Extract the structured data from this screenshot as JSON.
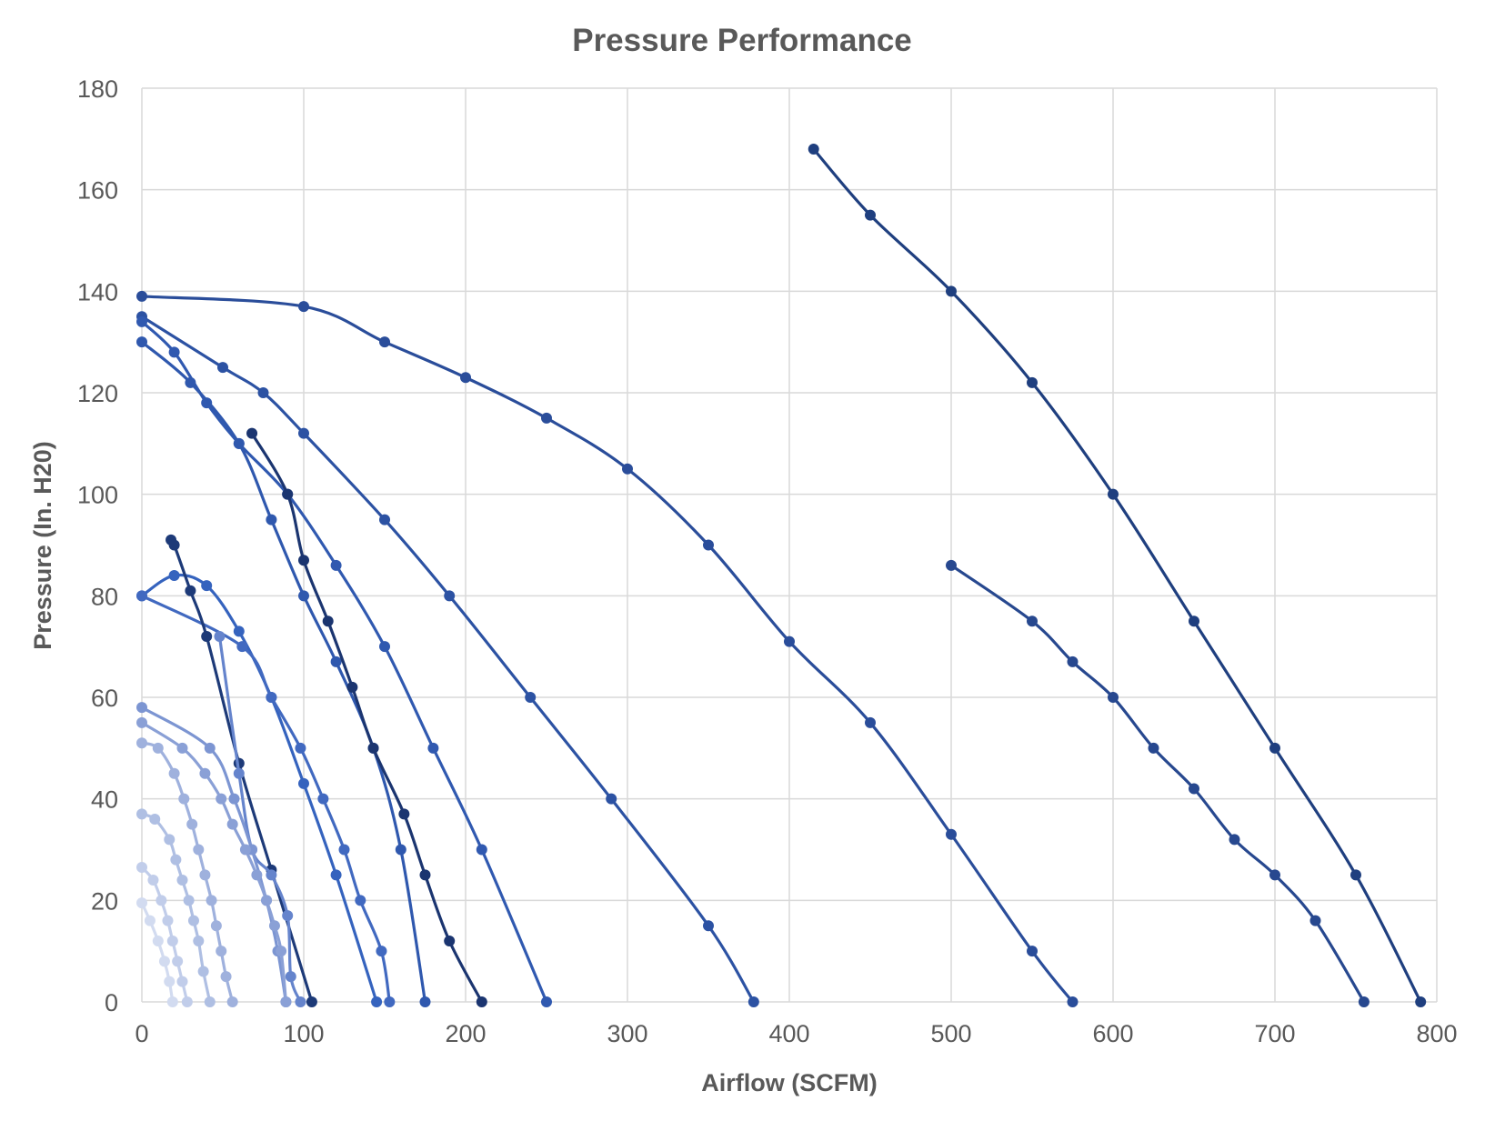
{
  "chart_data": {
    "type": "scatter",
    "title": "Pressure Performance",
    "xlabel": "Airflow (SCFM)",
    "ylabel": "Pressure (In. H20)",
    "xlim": [
      0,
      800
    ],
    "ylim": [
      0,
      180
    ],
    "xticks": [
      0,
      100,
      200,
      300,
      400,
      500,
      600,
      700,
      800
    ],
    "yticks": [
      0,
      20,
      40,
      60,
      80,
      100,
      120,
      140,
      160,
      180
    ],
    "grid": true,
    "legend": "none",
    "smoothed_lines_with_markers": true,
    "series": [
      {
        "color": "#1f3f7f",
        "points": [
          [
            415,
            168
          ],
          [
            450,
            155
          ],
          [
            500,
            140
          ],
          [
            550,
            122
          ],
          [
            600,
            100
          ],
          [
            650,
            75
          ],
          [
            700,
            50
          ],
          [
            750,
            25
          ],
          [
            790,
            0
          ]
        ]
      },
      {
        "color": "#27488f",
        "points": [
          [
            500,
            86
          ],
          [
            550,
            75
          ],
          [
            575,
            67
          ],
          [
            600,
            60
          ],
          [
            625,
            50
          ],
          [
            650,
            42
          ],
          [
            675,
            32
          ],
          [
            700,
            25
          ],
          [
            725,
            16
          ],
          [
            755,
            0
          ]
        ]
      },
      {
        "color": "#2a4d9a",
        "points": [
          [
            0,
            139
          ],
          [
            100,
            137
          ],
          [
            150,
            130
          ],
          [
            200,
            123
          ],
          [
            250,
            115
          ],
          [
            300,
            105
          ],
          [
            350,
            90
          ],
          [
            400,
            71
          ],
          [
            450,
            55
          ],
          [
            500,
            33
          ],
          [
            550,
            10
          ],
          [
            575,
            0
          ]
        ]
      },
      {
        "color": "#2c52a3",
        "points": [
          [
            0,
            135
          ],
          [
            50,
            125
          ],
          [
            75,
            120
          ],
          [
            100,
            112
          ],
          [
            150,
            95
          ],
          [
            190,
            80
          ],
          [
            240,
            60
          ],
          [
            290,
            40
          ],
          [
            350,
            15
          ],
          [
            378,
            0
          ]
        ]
      },
      {
        "color": "#3059b0",
        "points": [
          [
            0,
            134
          ],
          [
            20,
            128
          ],
          [
            40,
            118
          ],
          [
            60,
            110
          ],
          [
            90,
            100
          ],
          [
            120,
            86
          ],
          [
            150,
            70
          ],
          [
            180,
            50
          ],
          [
            210,
            30
          ],
          [
            250,
            0
          ]
        ]
      },
      {
        "color": "#2f58ae",
        "points": [
          [
            0,
            130
          ],
          [
            30,
            122
          ],
          [
            60,
            110
          ],
          [
            80,
            95
          ],
          [
            100,
            80
          ],
          [
            120,
            67
          ],
          [
            143,
            50
          ],
          [
            160,
            30
          ],
          [
            175,
            0
          ]
        ]
      },
      {
        "color": "#1b3570",
        "points": [
          [
            68,
            112
          ],
          [
            90,
            100
          ],
          [
            100,
            87
          ],
          [
            115,
            75
          ],
          [
            130,
            62
          ],
          [
            143,
            50
          ],
          [
            162,
            37
          ],
          [
            175,
            25
          ],
          [
            190,
            12
          ],
          [
            210,
            0
          ]
        ]
      },
      {
        "color": "#3563be",
        "points": [
          [
            0,
            80
          ],
          [
            20,
            84
          ],
          [
            40,
            82
          ],
          [
            60,
            73
          ],
          [
            80,
            60
          ],
          [
            100,
            43
          ],
          [
            120,
            25
          ],
          [
            145,
            0
          ]
        ]
      },
      {
        "color": "#4169c0",
        "points": [
          [
            0,
            80
          ],
          [
            62,
            70
          ],
          [
            80,
            60
          ],
          [
            98,
            50
          ],
          [
            112,
            40
          ],
          [
            125,
            30
          ],
          [
            135,
            20
          ],
          [
            148,
            10
          ],
          [
            153,
            0
          ]
        ]
      },
      {
        "color": "#1d3a78",
        "points": [
          [
            18,
            91
          ],
          [
            20,
            90
          ],
          [
            30,
            81
          ],
          [
            40,
            72
          ],
          [
            60,
            47
          ],
          [
            80,
            26
          ],
          [
            105,
            0
          ]
        ]
      },
      {
        "color": "#6584cc",
        "points": [
          [
            48,
            72
          ],
          [
            60,
            45
          ],
          [
            68,
            30
          ],
          [
            80,
            25
          ],
          [
            90,
            17
          ],
          [
            92,
            5
          ],
          [
            98,
            0
          ]
        ]
      },
      {
        "color": "#7c95d2",
        "points": [
          [
            0,
            58
          ],
          [
            42,
            50
          ],
          [
            57,
            40
          ],
          [
            68,
            30
          ],
          [
            77,
            20
          ],
          [
            84,
            10
          ],
          [
            89,
            0
          ]
        ]
      },
      {
        "color": "#8aa0d6",
        "points": [
          [
            0,
            55
          ],
          [
            25,
            50
          ],
          [
            39,
            45
          ],
          [
            49,
            40
          ],
          [
            56,
            35
          ],
          [
            64,
            30
          ],
          [
            71,
            25
          ],
          [
            77,
            20
          ],
          [
            82,
            15
          ],
          [
            86,
            10
          ],
          [
            89,
            0
          ]
        ]
      },
      {
        "color": "#9fb1dd",
        "points": [
          [
            0,
            51
          ],
          [
            10,
            50
          ],
          [
            20,
            45
          ],
          [
            26,
            40
          ],
          [
            31,
            35
          ],
          [
            35,
            30
          ],
          [
            39,
            25
          ],
          [
            43,
            20
          ],
          [
            46,
            15
          ],
          [
            49,
            10
          ],
          [
            52,
            5
          ],
          [
            56,
            0
          ]
        ]
      },
      {
        "color": "#afbfe3",
        "points": [
          [
            0,
            37
          ],
          [
            8,
            36
          ],
          [
            17,
            32
          ],
          [
            21,
            28
          ],
          [
            25,
            24
          ],
          [
            29,
            20
          ],
          [
            32,
            16
          ],
          [
            35,
            12
          ],
          [
            38,
            6
          ],
          [
            42,
            0
          ]
        ]
      },
      {
        "color": "#c1cdea",
        "points": [
          [
            0,
            26.5
          ],
          [
            7,
            24
          ],
          [
            12,
            20
          ],
          [
            16,
            16
          ],
          [
            19,
            12
          ],
          [
            22,
            8
          ],
          [
            25,
            4
          ],
          [
            28,
            0
          ]
        ]
      },
      {
        "color": "#d2dbf0",
        "points": [
          [
            0,
            19.5
          ],
          [
            5,
            16
          ],
          [
            10,
            12
          ],
          [
            14,
            8
          ],
          [
            17,
            4
          ],
          [
            19,
            0
          ]
        ]
      }
    ]
  }
}
